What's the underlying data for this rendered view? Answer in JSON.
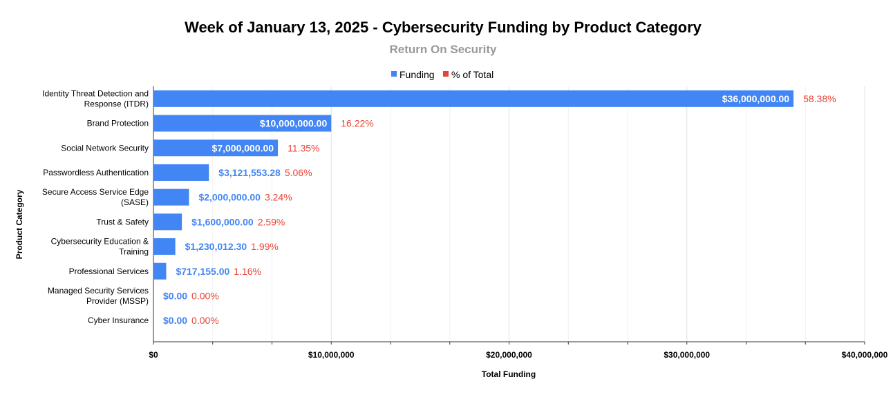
{
  "chart_data": {
    "type": "bar",
    "orientation": "horizontal",
    "title": "Week of January 13, 2025 - Cybersecurity Funding by Product Category",
    "subtitle": "Return On Security",
    "xlabel": "Total Funding",
    "ylabel": "Product Category",
    "xlim": [
      0,
      40000000
    ],
    "xticks": [
      0,
      10000000,
      20000000,
      30000000,
      40000000
    ],
    "xtick_labels": [
      "$0",
      "$10,000,000",
      "$20,000,000",
      "$30,000,000",
      "$40,000,000"
    ],
    "grid": true,
    "legend_position": "top-center",
    "legend": [
      {
        "name": "Funding",
        "color": "#4285F4"
      },
      {
        "name": "% of Total",
        "color": "#EA4335"
      }
    ],
    "categories": [
      [
        "Identity Threat Detection and",
        "Response (ITDR)"
      ],
      [
        "Brand Protection"
      ],
      [
        "Social Network Security"
      ],
      [
        "Passwordless Authentication"
      ],
      [
        "Secure Access Service Edge",
        "(SASE)"
      ],
      [
        "Trust & Safety"
      ],
      [
        "Cybersecurity Education &",
        "Training"
      ],
      [
        "Professional Services"
      ],
      [
        "Managed Security Services",
        "Provider (MSSP)"
      ],
      [
        "Cyber Insurance"
      ]
    ],
    "values": [
      36000000,
      10000000,
      7000000,
      3121553.28,
      2000000,
      1600000,
      1230012.3,
      717155.0,
      0,
      0
    ],
    "value_labels": [
      "$36,000,000.00",
      "$10,000,000.00",
      "$7,000,000.00",
      "$3,121,553.28",
      "$2,000,000.00",
      "$1,600,000.00",
      "$1,230,012.30",
      "$717,155.00",
      "$0.00",
      "$0.00"
    ],
    "value_labels_inside": [
      true,
      true,
      true,
      false,
      false,
      false,
      false,
      false,
      false,
      false
    ],
    "percent_labels": [
      "58.38%",
      "16.22%",
      "11.35%",
      "5.06%",
      "3.24%",
      "2.59%",
      "1.99%",
      "1.16%",
      "0.00%",
      "0.00%"
    ],
    "colors": {
      "bar": "#4285F4",
      "percent": "#EA4335",
      "subtitle": "#999999",
      "text": "#000000",
      "grid": "#e0e0e0",
      "axis": "#333333"
    }
  }
}
